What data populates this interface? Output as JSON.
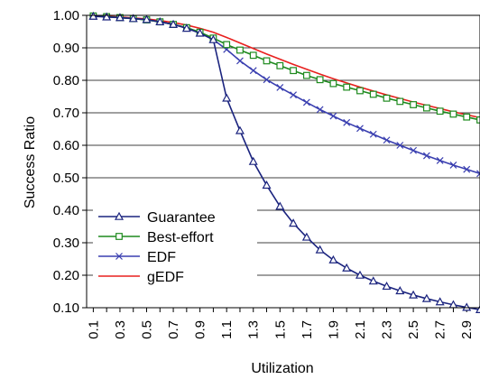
{
  "chart_data": {
    "type": "line",
    "title": "",
    "xlabel": "Utilization",
    "ylabel": "Success Ratio",
    "ylim": [
      0.1,
      1.0
    ],
    "yticks": [
      "0.10",
      "0.20",
      "0.30",
      "0.40",
      "0.50",
      "0.60",
      "0.70",
      "0.80",
      "0.90",
      "1.00"
    ],
    "xticks": [
      "0.1",
      "0.3",
      "0.5",
      "0.7",
      "0.9",
      "1.1",
      "1.3",
      "1.5",
      "1.7",
      "1.9",
      "2.1",
      "2.3",
      "2.5",
      "2.7",
      "2.9"
    ],
    "x": [
      0.1,
      0.2,
      0.3,
      0.4,
      0.5,
      0.6,
      0.7,
      0.8,
      0.9,
      1.0,
      1.1,
      1.2,
      1.3,
      1.4,
      1.5,
      1.6,
      1.7,
      1.8,
      1.9,
      2.0,
      2.1,
      2.2,
      2.3,
      2.4,
      2.5,
      2.6,
      2.7,
      2.8,
      2.9,
      3.0
    ],
    "grid": "horizontal",
    "legend_position": "lower-left",
    "series": [
      {
        "name": "Guarantee",
        "color": "#1a237e",
        "marker": "triangle",
        "values": [
          0.997,
          0.995,
          0.993,
          0.99,
          0.987,
          0.98,
          0.972,
          0.96,
          0.945,
          0.925,
          0.745,
          0.645,
          0.55,
          0.477,
          0.412,
          0.36,
          0.317,
          0.278,
          0.247,
          0.222,
          0.2,
          0.182,
          0.166,
          0.152,
          0.139,
          0.128,
          0.118,
          0.109,
          0.101,
          0.094
        ]
      },
      {
        "name": "Best-effort",
        "color": "#1e8a1e",
        "marker": "square",
        "values": [
          0.998,
          0.996,
          0.993,
          0.99,
          0.986,
          0.98,
          0.972,
          0.962,
          0.948,
          0.93,
          0.91,
          0.893,
          0.877,
          0.86,
          0.845,
          0.83,
          0.815,
          0.802,
          0.79,
          0.779,
          0.768,
          0.757,
          0.745,
          0.735,
          0.725,
          0.715,
          0.705,
          0.696,
          0.687,
          0.678
        ]
      },
      {
        "name": "EDF",
        "color": "#3a3fb0",
        "marker": "x",
        "values": [
          0.998,
          0.996,
          0.993,
          0.99,
          0.986,
          0.98,
          0.972,
          0.962,
          0.948,
          0.925,
          0.895,
          0.86,
          0.83,
          0.802,
          0.778,
          0.755,
          0.732,
          0.71,
          0.69,
          0.67,
          0.652,
          0.634,
          0.616,
          0.6,
          0.584,
          0.568,
          0.553,
          0.539,
          0.526,
          0.513
        ]
      },
      {
        "name": "gEDF",
        "color": "#e8201e",
        "marker": "none",
        "values": [
          0.999,
          0.997,
          0.995,
          0.992,
          0.989,
          0.984,
          0.978,
          0.97,
          0.96,
          0.948,
          0.932,
          0.915,
          0.898,
          0.881,
          0.865,
          0.849,
          0.834,
          0.819,
          0.805,
          0.792,
          0.779,
          0.767,
          0.755,
          0.744,
          0.733,
          0.723,
          0.713,
          0.703,
          0.694,
          0.685
        ]
      }
    ]
  }
}
